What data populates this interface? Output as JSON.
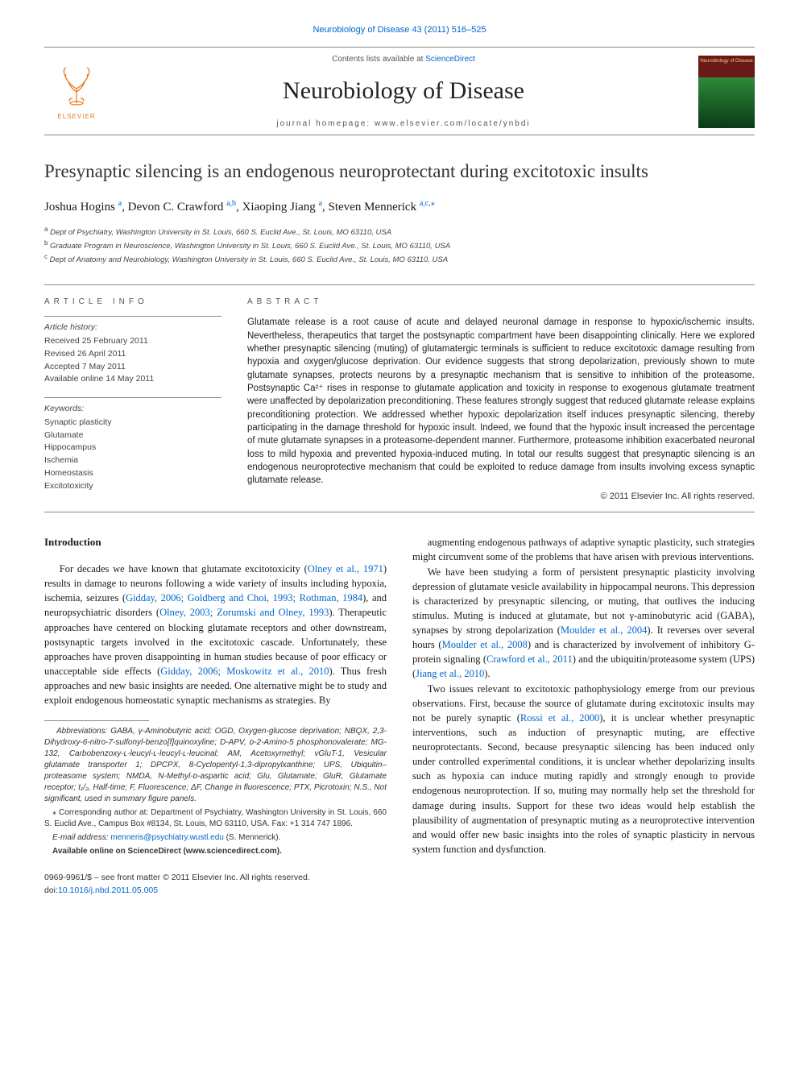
{
  "journal_ref": "Neurobiology of Disease 43 (2011) 516–525",
  "masthead": {
    "contents_prefix": "Contents lists available at ",
    "contents_link": "ScienceDirect",
    "journal_name": "Neurobiology of Disease",
    "homepage": "journal homepage: www.elsevier.com/locate/ynbdi",
    "publisher_label": "ELSEVIER",
    "cover_label": "Neurobiology of Disease"
  },
  "title": "Presynaptic silencing is an endogenous neuroprotectant during excitotoxic insults",
  "authors": [
    {
      "name": "Joshua Hogins",
      "affil": "a"
    },
    {
      "name": "Devon C. Crawford",
      "affil": "a,b"
    },
    {
      "name": "Xiaoping Jiang",
      "affil": "a"
    },
    {
      "name": "Steven Mennerick",
      "affil": "a,c,",
      "corresponding": true
    }
  ],
  "affiliations": [
    {
      "sup": "a",
      "text": "Dept of Psychiatry, Washington University in St. Louis, 660 S. Euclid Ave., St. Louis, MO 63110, USA"
    },
    {
      "sup": "b",
      "text": "Graduate Program in Neuroscience, Washington University in St. Louis, 660 S. Euclid Ave., St. Louis, MO 63110, USA"
    },
    {
      "sup": "c",
      "text": "Dept of Anatomy and Neurobiology, Washington University in St. Louis, 660 S. Euclid Ave., St. Louis, MO 63110, USA"
    }
  ],
  "article_info": {
    "label": "ARTICLE INFO",
    "history_title": "Article history:",
    "history": [
      "Received 25 February 2011",
      "Revised 26 April 2011",
      "Accepted 7 May 2011",
      "Available online 14 May 2011"
    ],
    "keywords_title": "Keywords:",
    "keywords": [
      "Synaptic plasticity",
      "Glutamate",
      "Hippocampus",
      "Ischemia",
      "Homeostasis",
      "Excitotoxicity"
    ]
  },
  "abstract": {
    "label": "ABSTRACT",
    "text": "Glutamate release is a root cause of acute and delayed neuronal damage in response to hypoxic/ischemic insults. Nevertheless, therapeutics that target the postsynaptic compartment have been disappointing clinically. Here we explored whether presynaptic silencing (muting) of glutamatergic terminals is sufficient to reduce excitotoxic damage resulting from hypoxia and oxygen/glucose deprivation. Our evidence suggests that strong depolarization, previously shown to mute glutamate synapses, protects neurons by a presynaptic mechanism that is sensitive to inhibition of the proteasome. Postsynaptic Ca²⁺ rises in response to glutamate application and toxicity in response to exogenous glutamate treatment were unaffected by depolarization preconditioning. These features strongly suggest that reduced glutamate release explains preconditioning protection. We addressed whether hypoxic depolarization itself induces presynaptic silencing, thereby participating in the damage threshold for hypoxic insult. Indeed, we found that the hypoxic insult increased the percentage of mute glutamate synapses in a proteasome-dependent manner. Furthermore, proteasome inhibition exacerbated neuronal loss to mild hypoxia and prevented hypoxia-induced muting. In total our results suggest that presynaptic silencing is an endogenous neuroprotective mechanism that could be exploited to reduce damage from insults involving excess synaptic glutamate release.",
    "copyright": "© 2011 Elsevier Inc. All rights reserved."
  },
  "body": {
    "intro_heading": "Introduction",
    "left_paragraphs": [
      "For decades we have known that glutamate excitotoxicity (<span class=\"cite\">Olney et al., 1971</span>) results in damage to neurons following a wide variety of insults including hypoxia, ischemia, seizures (<span class=\"cite\">Gidday, 2006; Goldberg and Choi, 1993; Rothman, 1984</span>), and neuropsychiatric disorders (<span class=\"cite\">Olney, 2003; Zorumski and Olney, 1993</span>). Therapeutic approaches have centered on blocking glutamate receptors and other downstream, postsynaptic targets involved in the excitotoxic cascade. Unfortunately, these approaches have proven disappointing in human studies because of poor efficacy or unacceptable side effects (<span class=\"cite\">Gidday, 2006; Moskowitz et al., 2010</span>). Thus fresh approaches and new basic insights are needed. One alternative might be to study and exploit endogenous homeostatic synaptic mechanisms as strategies. By"
    ],
    "right_paragraphs": [
      "augmenting endogenous pathways of adaptive synaptic plasticity, such strategies might circumvent some of the problems that have arisen with previous interventions.",
      "We have been studying a form of persistent presynaptic plasticity involving depression of glutamate vesicle availability in hippocampal neurons. This depression is characterized by presynaptic silencing, or muting, that outlives the inducing stimulus. Muting is induced at glutamate, but not γ-aminobutyric acid (GABA), synapses by strong depolarization (<span class=\"cite\">Moulder et al., 2004</span>). It reverses over several hours (<span class=\"cite\">Moulder et al., 2008</span>) and is characterized by involvement of inhibitory G-protein signaling (<span class=\"cite\">Crawford et al., 2011</span>) and the ubiquitin/proteasome system (UPS) (<span class=\"cite\">Jiang et al., 2010</span>).",
      "Two issues relevant to excitotoxic pathophysiology emerge from our previous observations. First, because the source of glutamate during excitotoxic insults may not be purely synaptic (<span class=\"cite\">Rossi et al., 2000</span>), it is unclear whether presynaptic interventions, such as induction of presynaptic muting, are effective neuroprotectants. Second, because presynaptic silencing has been induced only under controlled experimental conditions, it is unclear whether depolarizing insults such as hypoxia can induce muting rapidly and strongly enough to provide endogenous neuroprotection. If so, muting may normally help set the threshold for damage during insults. Support for these two ideas would help establish the plausibility of augmentation of presynaptic muting as a neuroprotective intervention and would offer new basic insights into the roles of synaptic plasticity in nervous system function and dysfunction."
    ]
  },
  "footnotes": {
    "abbreviations": "Abbreviations: GABA, γ-Aminobutyric acid; OGD, Oxygen-glucose deprivation; NBQX, 2,3-Dihydroxy-6-nitro-7-sulfonyl-benzo[f]quinoxyline; D-APV, ᴅ-2-Amino-5 phosphonovalerate; MG-132, Carbobenzoxy-ʟ-leucyl-ʟ-leucyl-ʟ-leucinal; AM, Acetoxymethyl; vGluT-1, Vesicular glutamate transporter 1; DPCPX, 8-Cyclopentyl-1,3-dipropylxanthine; UPS, Ubiquitin–proteasome system; NMDA, N-Methyl-ᴅ-aspartic acid; Glu, Glutamate; GluR, Glutamate receptor; t₁/₂, Half-time; F, Fluorescence; ΔF, Change in fluorescence; PTX, Picrotoxin; N.S., Not significant, used in summary figure panels.",
    "corresponding": "⁎ Corresponding author at: Department of Psychiatry, Washington University in St. Louis, 660 S. Euclid Ave., Campus Box #8134, St. Louis, MO 63110, USA. Fax: +1 314 747 1896.",
    "email_label": "E-mail address: ",
    "email": "menneris@psychiatry.wustl.edu",
    "email_suffix": " (S. Mennerick).",
    "available": "Available online on ScienceDirect (www.sciencedirect.com)."
  },
  "footer": {
    "frontmatter": "0969-9961/$ – see front matter © 2011 Elsevier Inc. All rights reserved.",
    "doi_label": "doi:",
    "doi": "10.1016/j.nbd.2011.05.005"
  },
  "colors": {
    "link": "#0066cc",
    "text": "#1a1a1a",
    "rule": "#888888",
    "elsevier_orange": "#e67a17"
  }
}
